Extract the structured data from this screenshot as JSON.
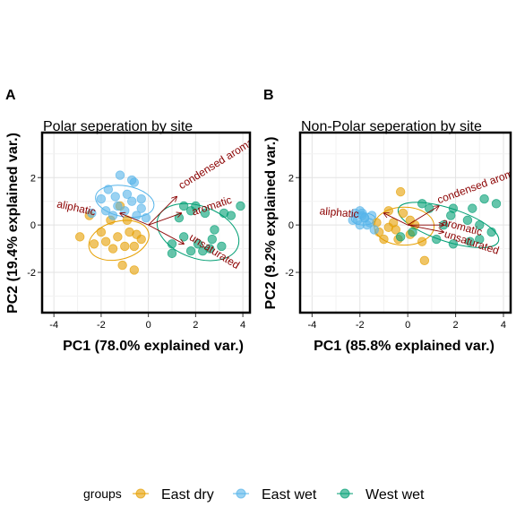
{
  "legend": {
    "title": "groups",
    "items": [
      {
        "label": "East dry",
        "color": "#E69F00"
      },
      {
        "label": "East wet",
        "color": "#56B4E9"
      },
      {
        "label": "West wet",
        "color": "#009E73"
      }
    ]
  },
  "chart_data": [
    {
      "type": "scatter",
      "tag": "A",
      "title": "Polar seperation by site",
      "xlabel": "PC1 (78.0% explained var.)",
      "ylabel": "PC2 (19.4% explained var.)",
      "xlim": [
        -4.5,
        4.3
      ],
      "ylim": [
        -3.7,
        3.9
      ],
      "xticks": [
        -4,
        -2,
        0,
        2,
        4
      ],
      "yticks": [
        -2,
        0,
        2
      ],
      "grid": true,
      "series": [
        {
          "name": "East dry",
          "color": "#E69F00",
          "points": [
            [
              -1.2,
              0.8
            ],
            [
              -2.5,
              0.4
            ],
            [
              -2.9,
              -0.5
            ],
            [
              -2.0,
              -0.3
            ],
            [
              -1.8,
              -0.7
            ],
            [
              -1.5,
              -1.0
            ],
            [
              -1.3,
              -0.5
            ],
            [
              -1.0,
              -0.9
            ],
            [
              -0.8,
              -0.3
            ],
            [
              -0.6,
              -0.9
            ],
            [
              -0.5,
              -0.4
            ],
            [
              -0.9,
              0.2
            ],
            [
              -1.1,
              -1.7
            ],
            [
              -0.6,
              -1.9
            ],
            [
              -2.3,
              -0.8
            ],
            [
              -1.6,
              0.2
            ],
            [
              -0.3,
              -0.6
            ]
          ],
          "ellipse": {
            "cx": -1.25,
            "cy": -0.65,
            "rx": 1.3,
            "ry": 0.8,
            "angle": -15
          }
        },
        {
          "name": "East wet",
          "color": "#56B4E9",
          "points": [
            [
              -1.2,
              2.1
            ],
            [
              -0.6,
              1.8
            ],
            [
              -1.7,
              1.5
            ],
            [
              -1.4,
              1.2
            ],
            [
              -0.9,
              1.3
            ],
            [
              -0.7,
              1.0
            ],
            [
              -2.0,
              1.1
            ],
            [
              -1.3,
              0.8
            ],
            [
              -0.3,
              0.7
            ],
            [
              -0.1,
              0.3
            ],
            [
              -1.8,
              0.6
            ],
            [
              -0.5,
              0.4
            ],
            [
              -1.0,
              0.6
            ],
            [
              -2.4,
              0.5
            ],
            [
              -0.7,
              1.9
            ],
            [
              -0.3,
              1.1
            ],
            [
              -1.5,
              0.4
            ]
          ],
          "ellipse": {
            "cx": -1.0,
            "cy": 1.0,
            "rx": 1.25,
            "ry": 0.65,
            "angle": 10
          }
        },
        {
          "name": "West wet",
          "color": "#009E73",
          "points": [
            [
              3.9,
              0.8
            ],
            [
              3.5,
              0.4
            ],
            [
              2.7,
              -0.6
            ],
            [
              1.8,
              0.6
            ],
            [
              2.0,
              0.8
            ],
            [
              1.5,
              0.8
            ],
            [
              1.3,
              0.3
            ],
            [
              2.4,
              0.5
            ],
            [
              3.2,
              0.5
            ],
            [
              2.8,
              -0.2
            ],
            [
              2.1,
              -0.8
            ],
            [
              2.6,
              -1.0
            ],
            [
              1.0,
              -0.8
            ],
            [
              1.5,
              -0.5
            ],
            [
              1.8,
              -1.1
            ],
            [
              2.3,
              -1.1
            ],
            [
              3.1,
              -0.9
            ],
            [
              1.0,
              -1.2
            ]
          ],
          "ellipse": {
            "cx": 2.1,
            "cy": -0.3,
            "rx": 1.8,
            "ry": 1.1,
            "angle": 20
          }
        }
      ],
      "vectors": [
        {
          "label": "condensed aromatic",
          "x": 1.2,
          "y": 1.2,
          "label_x": 1.4,
          "label_y": 1.5,
          "label_angle": -32
        },
        {
          "label": "aromatic",
          "x": 1.4,
          "y": 0.5,
          "label_x": 1.9,
          "label_y": 0.4,
          "label_angle": -18
        },
        {
          "label": "unsaturated",
          "x": 1.5,
          "y": -0.8,
          "label_x": 1.7,
          "label_y": -0.6,
          "label_angle": 32
        },
        {
          "label": "aliphatic",
          "x": -1.2,
          "y": 0.5,
          "label_x": -3.9,
          "label_y": 0.75,
          "label_angle": 12
        }
      ]
    },
    {
      "type": "scatter",
      "tag": "B",
      "title": "Non-Polar seperation by site",
      "xlabel": "PC1 (85.8% explained var.)",
      "ylabel": "PC2 (9.2% explained var.)",
      "xlim": [
        -4.5,
        4.3
      ],
      "ylim": [
        -3.7,
        3.9
      ],
      "xticks": [
        -4,
        -2,
        0,
        2,
        4
      ],
      "yticks": [
        -2,
        0,
        2
      ],
      "grid": true,
      "series": [
        {
          "name": "East dry",
          "color": "#E69F00",
          "points": [
            [
              -0.3,
              1.4
            ],
            [
              -1.2,
              -0.3
            ],
            [
              -0.5,
              -0.2
            ],
            [
              -0.2,
              0.5
            ],
            [
              0.1,
              0.2
            ],
            [
              -0.8,
              -0.1
            ],
            [
              -1.0,
              -0.6
            ],
            [
              -0.4,
              -0.6
            ],
            [
              0.3,
              0.0
            ],
            [
              0.6,
              -0.7
            ],
            [
              0.7,
              -1.5
            ],
            [
              -1.3,
              0.1
            ],
            [
              -0.8,
              0.6
            ],
            [
              0.1,
              -0.4
            ],
            [
              -0.6,
              0.1
            ]
          ],
          "ellipse": {
            "cx": -0.15,
            "cy": -0.05,
            "rx": 1.25,
            "ry": 0.8,
            "angle": 0
          }
        },
        {
          "name": "East wet",
          "color": "#56B4E9",
          "points": [
            [
              -2.0,
              0.6
            ],
            [
              -2.2,
              0.5
            ],
            [
              -1.9,
              0.4
            ],
            [
              -1.8,
              0.3
            ],
            [
              -2.1,
              0.2
            ],
            [
              -1.7,
              0.0
            ],
            [
              -1.6,
              0.1
            ],
            [
              -2.3,
              0.2
            ],
            [
              -1.9,
              0.5
            ],
            [
              -1.4,
              -0.2
            ],
            [
              -1.8,
              0.3
            ],
            [
              -1.5,
              0.4
            ],
            [
              -2.0,
              0.0
            ]
          ],
          "ellipse": {
            "cx": -1.85,
            "cy": 0.25,
            "rx": 0.5,
            "ry": 0.25,
            "angle": 0
          }
        },
        {
          "name": "West wet",
          "color": "#009E73",
          "points": [
            [
              3.2,
              1.1
            ],
            [
              3.7,
              0.9
            ],
            [
              2.7,
              0.7
            ],
            [
              2.5,
              0.2
            ],
            [
              1.8,
              0.4
            ],
            [
              1.9,
              0.7
            ],
            [
              0.9,
              0.7
            ],
            [
              0.6,
              0.9
            ],
            [
              3.0,
              0.0
            ],
            [
              3.5,
              -0.3
            ],
            [
              3.0,
              -0.6
            ],
            [
              1.9,
              -0.8
            ],
            [
              1.2,
              -0.6
            ],
            [
              0.2,
              -0.3
            ],
            [
              -0.3,
              -0.5
            ],
            [
              2.6,
              -0.7
            ],
            [
              1.5,
              0.0
            ]
          ],
          "ellipse": {
            "cx": 1.7,
            "cy": 0.0,
            "rx": 2.2,
            "ry": 0.7,
            "angle": 18
          }
        }
      ],
      "vectors": [
        {
          "label": "condensed aromatic",
          "x": 1.3,
          "y": 0.8,
          "label_x": 1.3,
          "label_y": 0.9,
          "label_angle": -20
        },
        {
          "label": "aromatic",
          "x": 1.5,
          "y": 0.0,
          "label_x": 1.4,
          "label_y": 0.0,
          "label_angle": 15
        },
        {
          "label": "unsaturated",
          "x": 1.5,
          "y": -0.3,
          "label_x": 1.5,
          "label_y": -0.5,
          "label_angle": 18
        },
        {
          "label": "aliphatic",
          "x": -1.0,
          "y": 0.5,
          "label_x": -3.7,
          "label_y": 0.45,
          "label_angle": 5
        }
      ]
    }
  ]
}
